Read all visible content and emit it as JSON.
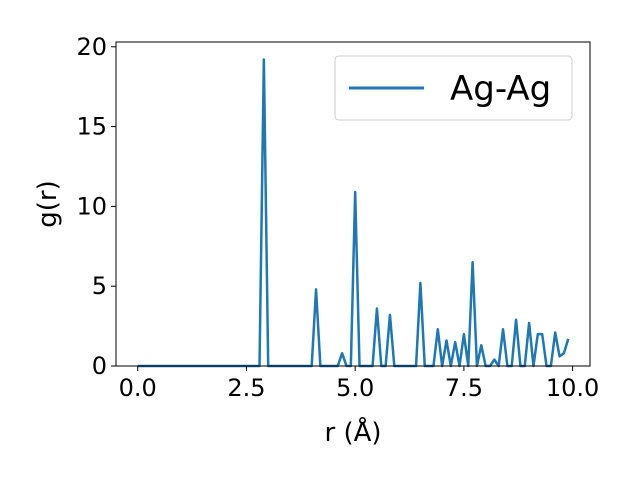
{
  "chart_data": {
    "type": "line",
    "title": "",
    "xlabel": "r (Å)",
    "ylabel": "g(r)",
    "xlim": [
      -0.5,
      10.4
    ],
    "ylim": [
      0,
      20.3
    ],
    "xticks": [
      0.0,
      2.5,
      5.0,
      7.5,
      10.0
    ],
    "xtick_labels": [
      "0.0",
      "2.5",
      "5.0",
      "7.5",
      "10.0"
    ],
    "yticks": [
      0,
      5,
      10,
      15,
      20
    ],
    "ytick_labels": [
      "0",
      "5",
      "10",
      "15",
      "20"
    ],
    "grid": false,
    "legend": {
      "position": "top-right"
    },
    "series": [
      {
        "name": "Ag-Ag",
        "color": "#1f77b4",
        "x": [
          0.0,
          2.8,
          2.9,
          3.0,
          4.0,
          4.1,
          4.2,
          4.6,
          4.7,
          4.8,
          4.9,
          5.0,
          5.1,
          5.4,
          5.5,
          5.6,
          5.7,
          5.8,
          5.9,
          6.4,
          6.5,
          6.6,
          6.8,
          6.9,
          7.0,
          7.1,
          7.2,
          7.3,
          7.4,
          7.5,
          7.6,
          7.7,
          7.8,
          7.9,
          8.0,
          8.1,
          8.2,
          8.3,
          8.4,
          8.5,
          8.6,
          8.7,
          8.8,
          8.9,
          9.0,
          9.1,
          9.2,
          9.3,
          9.4,
          9.5,
          9.6,
          9.7,
          9.8,
          9.9
        ],
        "y": [
          0,
          0,
          19.2,
          0,
          0,
          4.8,
          0,
          0,
          0.8,
          0,
          0,
          10.9,
          0,
          0,
          3.6,
          0,
          0,
          3.2,
          0,
          0,
          5.2,
          0,
          0,
          2.3,
          0,
          1.6,
          0,
          1.5,
          0,
          2.0,
          0,
          6.5,
          0,
          1.3,
          0,
          0,
          0.4,
          0,
          2.3,
          0,
          0,
          2.9,
          0,
          0,
          2.7,
          0,
          2.0,
          2.0,
          0,
          0,
          2.1,
          0.6,
          0.8,
          1.7
        ]
      }
    ]
  }
}
